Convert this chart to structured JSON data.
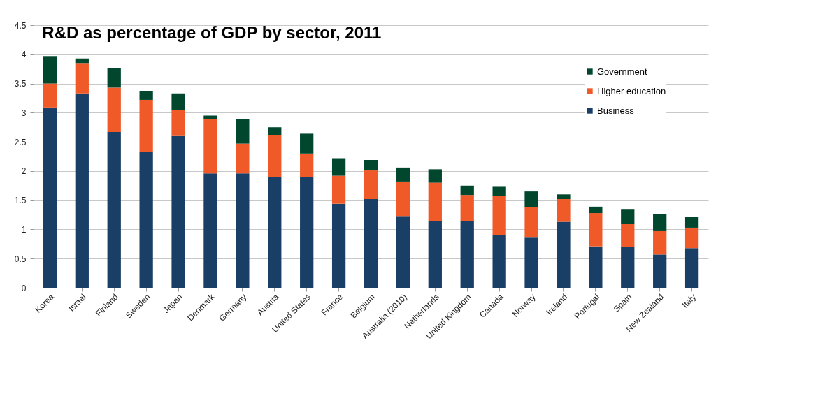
{
  "chart_data": {
    "type": "bar",
    "title": "R&D as percentage of GDP by sector, 2011",
    "categories": [
      "Korea",
      "Israel",
      "Finland",
      "Sweden",
      "Japan",
      "Denmark",
      "Germany",
      "Austria",
      "United States",
      "France",
      "Belgium",
      "Australia (2010)",
      "Netherlands",
      "United Kingdom",
      "Canada",
      "Norway",
      "Ireland",
      "Portugal",
      "Spain",
      "New Zealand",
      "Italy"
    ],
    "series": [
      {
        "name": "Business",
        "color": "#1a3f66",
        "values": [
          3.09,
          3.33,
          2.67,
          2.33,
          2.6,
          1.96,
          1.96,
          1.9,
          1.9,
          1.44,
          1.52,
          1.23,
          1.14,
          1.14,
          0.91,
          0.86,
          1.13,
          0.71,
          0.7,
          0.57,
          0.68
        ]
      },
      {
        "name": "Higher education",
        "color": "#f05a28",
        "values": [
          0.41,
          0.52,
          0.76,
          0.89,
          0.44,
          0.93,
          0.51,
          0.71,
          0.4,
          0.48,
          0.49,
          0.59,
          0.66,
          0.45,
          0.66,
          0.52,
          0.39,
          0.57,
          0.39,
          0.4,
          0.35
        ]
      },
      {
        "name": "Government",
        "color": "#00472e",
        "values": [
          0.47,
          0.08,
          0.34,
          0.15,
          0.29,
          0.06,
          0.42,
          0.14,
          0.34,
          0.3,
          0.18,
          0.24,
          0.23,
          0.16,
          0.16,
          0.27,
          0.08,
          0.11,
          0.26,
          0.29,
          0.18
        ]
      }
    ],
    "stacked": true,
    "ylim": [
      0,
      4.5
    ],
    "yticks": [
      0,
      0.5,
      1,
      1.5,
      2,
      2.5,
      3,
      3.5,
      4,
      4.5
    ],
    "grid": "y",
    "legend": "top right"
  }
}
